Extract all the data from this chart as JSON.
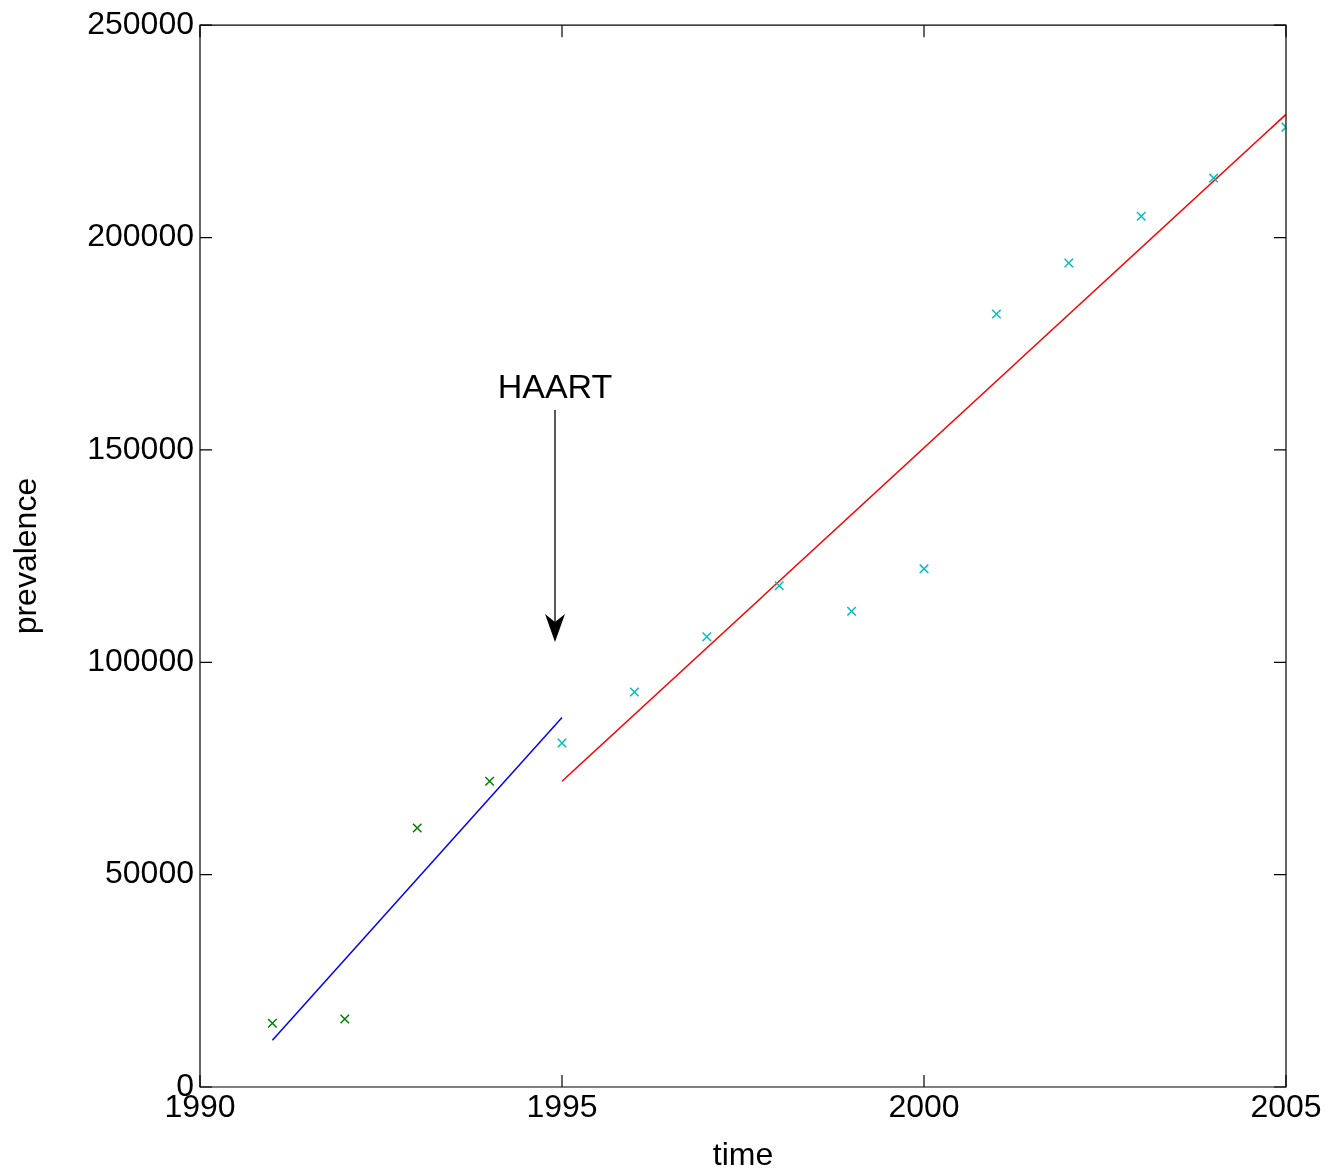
{
  "chart_data": {
    "type": "scatter",
    "xlabel": "time",
    "ylabel": "prevalence",
    "xlim": [
      1990,
      2005
    ],
    "xticks": [
      1990,
      1995,
      2000,
      2005
    ],
    "ylim": [
      0,
      250000
    ],
    "yticks": [
      0,
      50000,
      100000,
      150000,
      200000,
      250000
    ],
    "grid": false,
    "legend": false,
    "annotations": [
      "HAART"
    ],
    "series": [
      {
        "marker": "cross",
        "color": "#008000",
        "x": [
          1991,
          1992,
          1993,
          1994
        ],
        "values": [
          15000,
          16000,
          61000,
          72000
        ]
      },
      {
        "marker": "cross",
        "color": "#00bfbf",
        "x": [
          1995,
          1996,
          1997,
          1998,
          1999,
          2000,
          2001,
          2002,
          2003,
          2004,
          2005
        ],
        "values": [
          81000,
          93000,
          106000,
          118000,
          112000,
          122000,
          182000,
          194000,
          205000,
          214000,
          226000
        ]
      },
      {
        "type": "line",
        "color": "#0000ff",
        "x": [
          1991,
          1995
        ],
        "values": [
          11000,
          87000
        ]
      },
      {
        "type": "line",
        "color": "#ff0000",
        "x": [
          1995,
          2005
        ],
        "values": [
          72000,
          229000
        ]
      }
    ]
  }
}
